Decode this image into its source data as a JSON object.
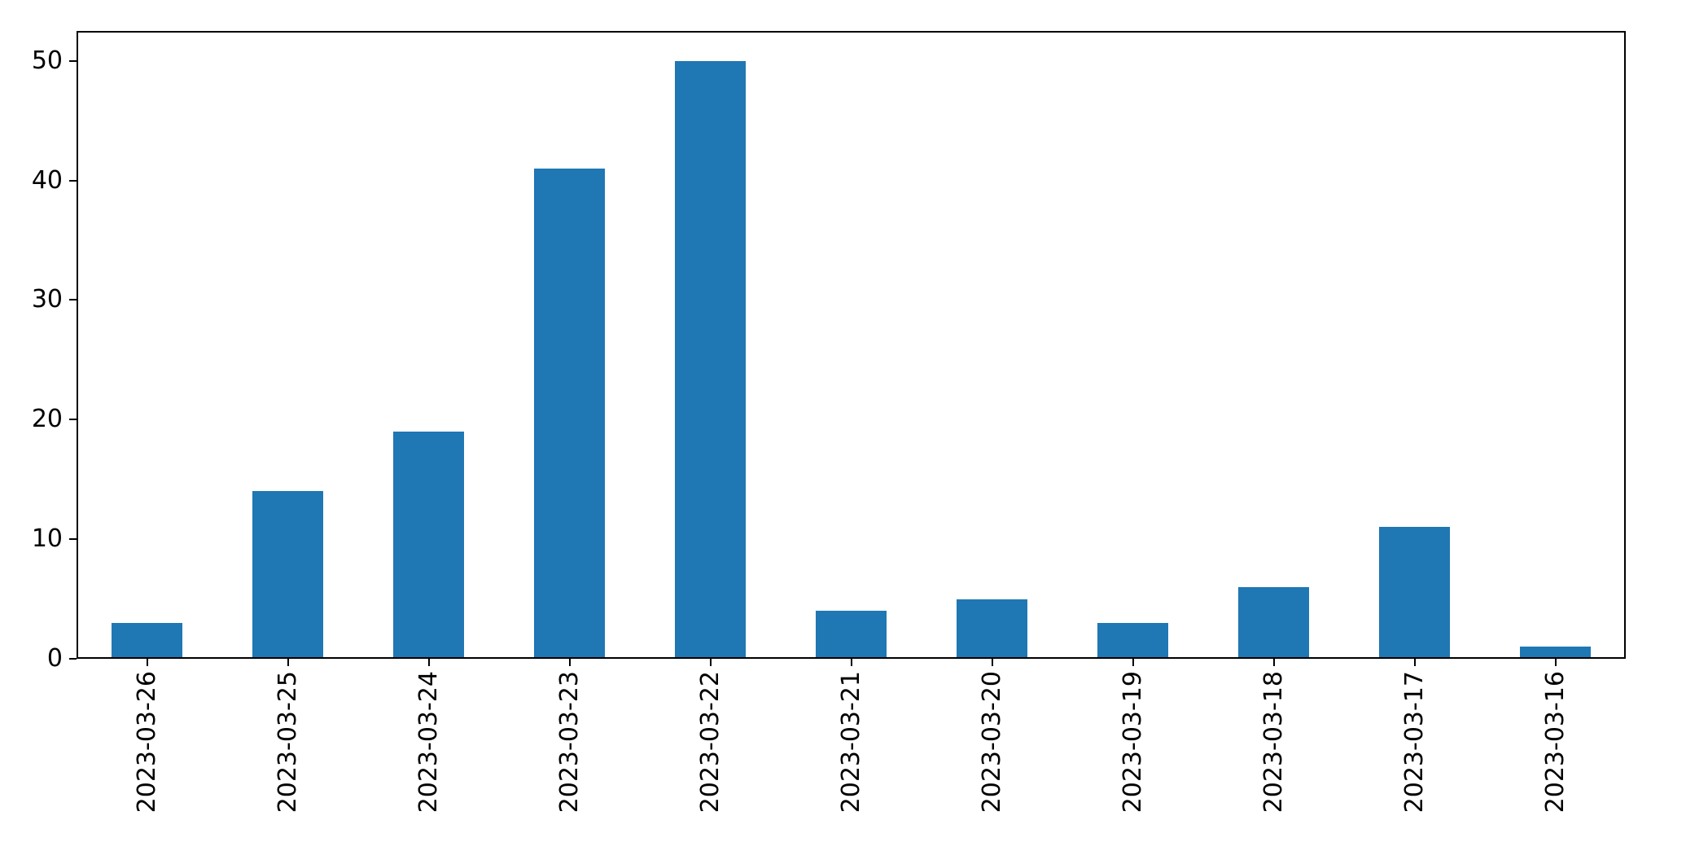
{
  "chart_data": {
    "type": "bar",
    "categories": [
      "2023-03-26",
      "2023-03-25",
      "2023-03-24",
      "2023-03-23",
      "2023-03-22",
      "2023-03-21",
      "2023-03-20",
      "2023-03-19",
      "2023-03-18",
      "2023-03-17",
      "2023-03-16"
    ],
    "values": [
      3,
      14,
      19,
      41,
      50,
      4,
      5,
      3,
      6,
      11,
      1
    ],
    "title": "",
    "xlabel": "",
    "ylabel": "",
    "ylim": [
      0,
      52.5
    ],
    "yticks": [
      0,
      10,
      20,
      30,
      40,
      50
    ],
    "x_tick_rotation": 90,
    "grid": false,
    "legend_position": "none",
    "bar_color": "#1f77b4",
    "axis_color": "#000000",
    "background_color": "#ffffff"
  }
}
